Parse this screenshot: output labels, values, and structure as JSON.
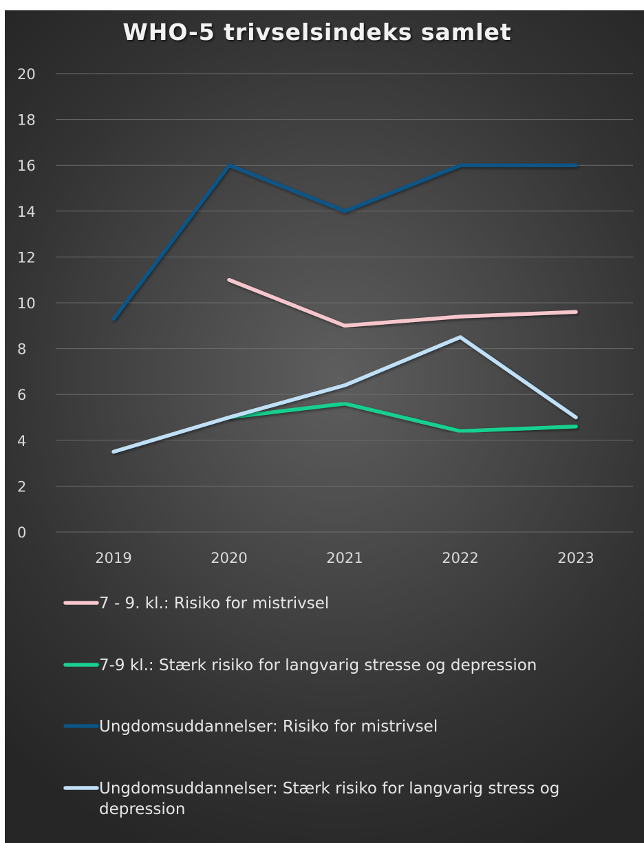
{
  "chart_data": {
    "type": "line",
    "title": "WHO-5 trivselsindeks samlet",
    "xlabel": "",
    "ylabel": "",
    "categories": [
      "2019",
      "2020",
      "2021",
      "2022",
      "2023"
    ],
    "ylim": [
      0,
      20
    ],
    "yticks": [
      "0",
      "2",
      "4",
      "6",
      "8",
      "10",
      "12",
      "14",
      "16",
      "18",
      "20"
    ],
    "grid": true,
    "legend_position": "bottom",
    "series": [
      {
        "name": "7 - 9. kl.: Risiko for mistrivsel",
        "color": "#f7c6cc",
        "values": [
          null,
          11.0,
          9.0,
          9.4,
          9.6
        ]
      },
      {
        "name": "7-9 kl.: Stærk risiko for langvarig stresse og depression",
        "color": "#18d08f",
        "values": [
          null,
          5.0,
          5.6,
          4.4,
          4.6
        ]
      },
      {
        "name": "Ungdomsuddannelser: Risiko for mistrivsel",
        "color": "#0b5586",
        "values": [
          9.3,
          16.0,
          14.0,
          16.0,
          16.0
        ]
      },
      {
        "name": "Ungdomsuddannelser: Stærk risiko for langvarig stress og depression",
        "color": "#bfe0f7",
        "values": [
          3.5,
          5.0,
          6.4,
          8.5,
          5.0
        ]
      }
    ]
  }
}
